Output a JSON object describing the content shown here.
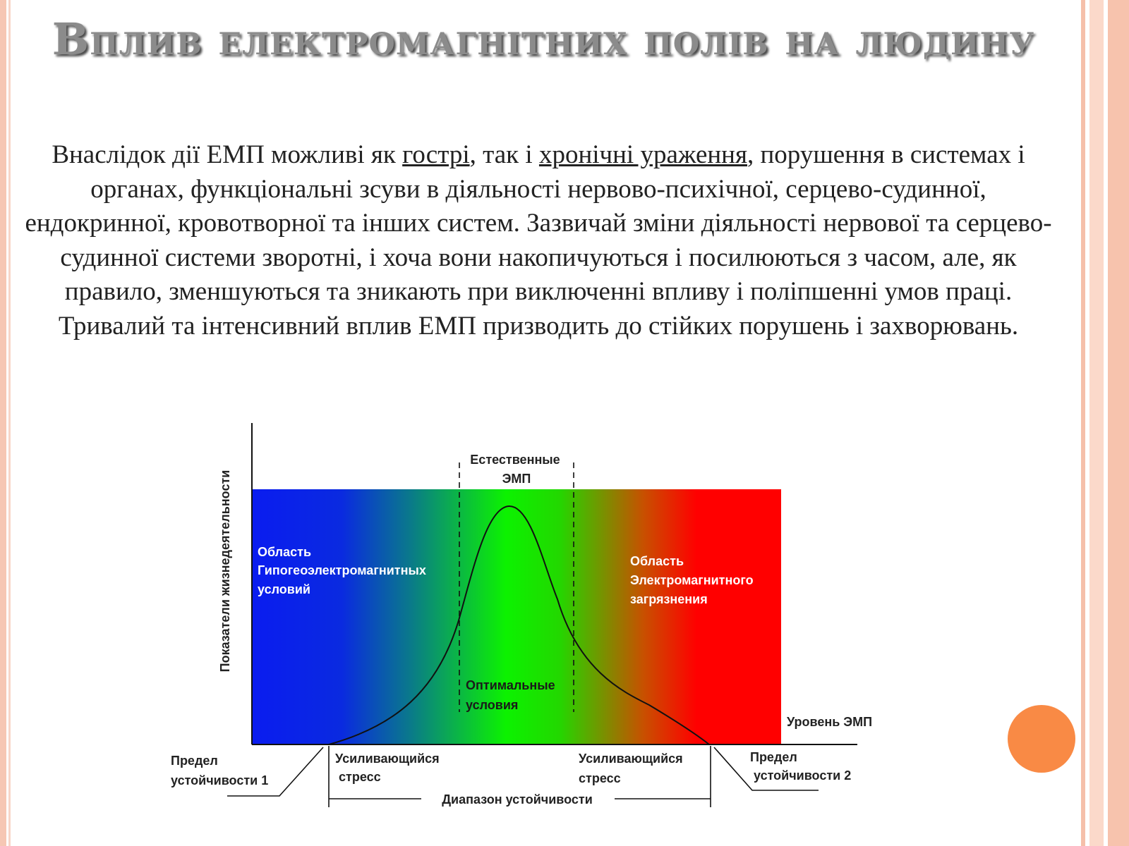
{
  "slide": {
    "title": "Вплив електромагнітних полів на людину",
    "paragraph": {
      "part1": "Внаслідок дії ЕМП можливі як ",
      "link1": "гострі",
      "part2": ", так і ",
      "link2": "хронічні ураження",
      "part3": ", порушення в системах і органах, функціональні зсуви в діяльності нервово-психічної, серцево-судинної, ендокринної, кровотворної та інших систем. Зазвичай зміни діяльності нервової та серцево-судинної системи зворотні, і хоча вони накопичуються і посилюються з часом, але, як правило, зменшуються та зникають при виключенні впливу і поліпшенні умов праці. Тривалий та інтенсивний вплив ЕМП призводить до стійких порушень і захворювань."
    }
  },
  "diagram": {
    "y_axis_label": "Показатели жизнедеятельности",
    "x_axis_label": "Уровень ЭМП",
    "natural_emf": [
      "Естественные",
      "ЭМП"
    ],
    "left_region": [
      "Область",
      "Гипогеоэлектромагнитных",
      "условий"
    ],
    "right_region": [
      "Область",
      "Электромагнитного",
      "загрязнения"
    ],
    "optimal": [
      "Оптимальные",
      "условия"
    ],
    "limit1": [
      "Предел",
      "устойчивости 1"
    ],
    "limit2": [
      "Предел",
      "устойчивости 2"
    ],
    "stress_left": [
      "Усиливающийся",
      "стресс"
    ],
    "stress_right": [
      "Усиливающийся",
      "стресс"
    ],
    "range": "Диапазон устойчивости",
    "colors": {
      "blue": "#0a1cf0",
      "green": "#0cf200",
      "red": "#ff0000"
    }
  }
}
